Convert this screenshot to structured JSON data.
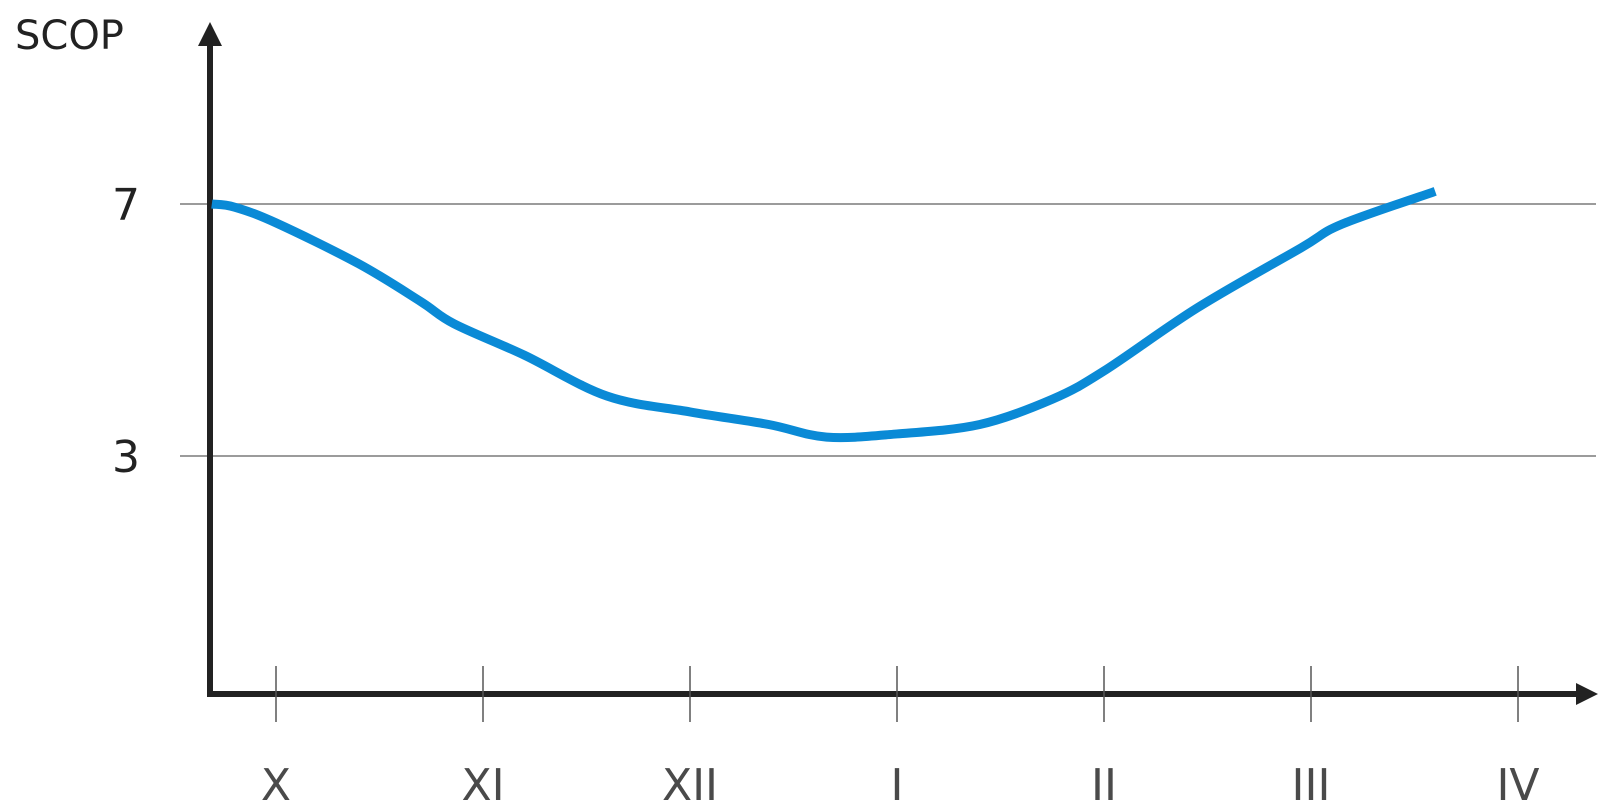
{
  "chart_data": {
    "type": "line",
    "ylabel": "SCOP",
    "xlabel": "",
    "categories": [
      "X",
      "XI",
      "XII",
      "I",
      "II",
      "III",
      "IV"
    ],
    "yticks": [
      3,
      7
    ],
    "grid": "horizontal lines at y ticks",
    "series": [
      {
        "color": "#0a8ad6",
        "x": [
          -0.31,
          -0.2,
          0.0,
          0.4,
          0.7,
          0.86,
          1.2,
          1.6,
          2.0,
          2.38,
          2.66,
          3.0,
          3.4,
          3.75,
          4.0,
          4.45,
          4.95,
          5.15,
          5.6
        ],
        "y": [
          7.0,
          6.95,
          6.7,
          6.05,
          5.45,
          5.1,
          4.6,
          3.95,
          3.7,
          3.5,
          3.3,
          3.35,
          3.5,
          3.9,
          4.35,
          5.35,
          6.3,
          6.68,
          7.2
        ]
      }
    ]
  }
}
